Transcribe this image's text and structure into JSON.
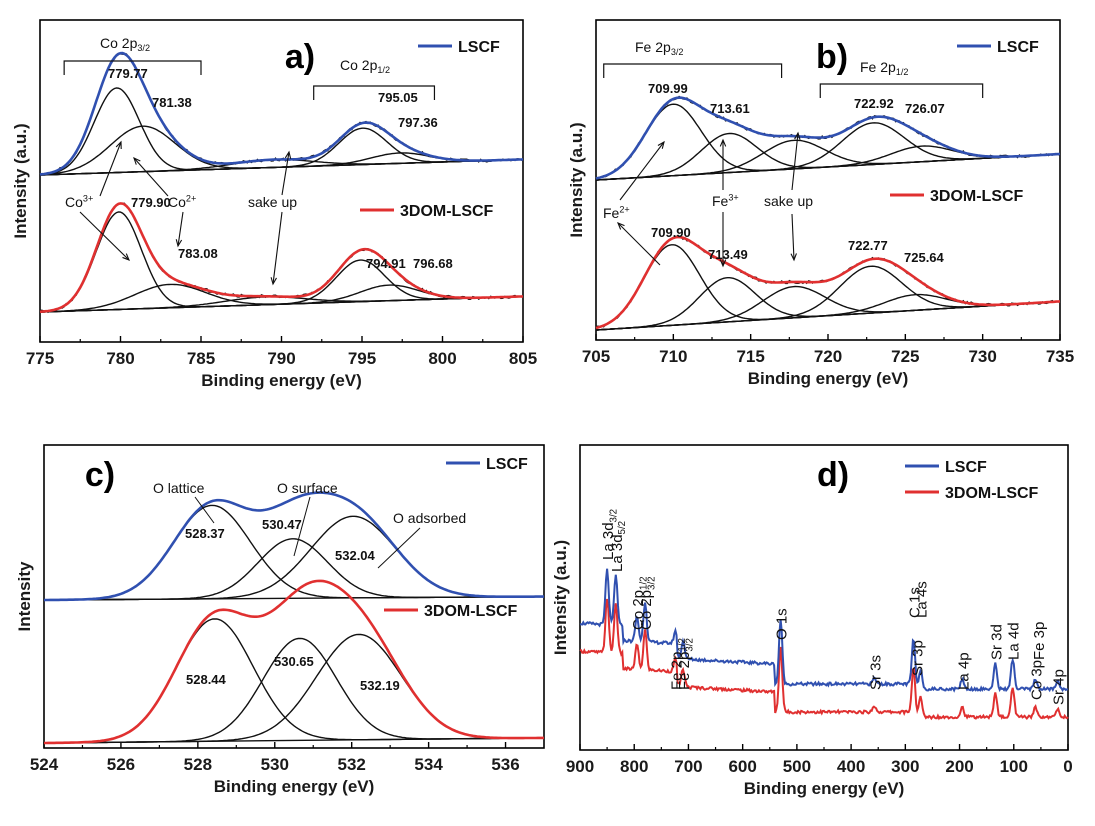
{
  "chart_data": [
    {
      "panel": "a)",
      "type": "line",
      "xlabel": "Binding energy (eV)",
      "ylabel": "Intensity (a.u.)",
      "xlim": [
        775,
        805
      ],
      "xticks": [
        775,
        780,
        785,
        790,
        795,
        800,
        805
      ],
      "series": [
        {
          "name": "LSCF",
          "color": "#3050b0",
          "peaks": [
            {
              "center": 779.77,
              "height": 0.65,
              "width": 1.4
            },
            {
              "center": 781.38,
              "height": 0.35,
              "width": 2.0
            },
            {
              "center": 789.5,
              "height": 0.06,
              "width": 2.5
            },
            {
              "center": 795.05,
              "height": 0.28,
              "width": 1.5
            },
            {
              "center": 797.36,
              "height": 0.08,
              "width": 1.8
            }
          ],
          "baseline": [
            0.0,
            0.12
          ]
        },
        {
          "name": "3DOM-LSCF",
          "color": "#e03030",
          "peaks": [
            {
              "center": 779.9,
              "height": 0.75,
              "width": 1.4
            },
            {
              "center": 783.08,
              "height": 0.18,
              "width": 2.2
            },
            {
              "center": 789.0,
              "height": 0.06,
              "width": 2.5
            },
            {
              "center": 794.91,
              "height": 0.32,
              "width": 1.5
            },
            {
              "center": 796.68,
              "height": 0.12,
              "width": 1.8
            }
          ],
          "baseline": [
            0.0,
            0.12
          ]
        }
      ],
      "annotations": [
        "Co 2p3/2",
        "Co 2p1/2",
        "779.77",
        "781.38",
        "795.05",
        "797.36",
        "779.90",
        "783.08",
        "794.91",
        "796.68",
        "Co3+",
        "Co2+",
        "sake up"
      ],
      "labels": {
        "co2p32_base": "Co 2p",
        "co2p32_sub": "3/2",
        "co2p12_base": "Co 2p",
        "co2p12_sub": "1/2",
        "p1": "779.77",
        "p2": "781.38",
        "p3": "795.05",
        "p4": "797.36",
        "p5": "779.90",
        "p6": "783.08",
        "p7": "794.91",
        "p8": "796.68",
        "co3_base": "Co",
        "co3_sup": "3+",
        "co2_base": "Co",
        "co2_sup": "2+",
        "sake": "sake up"
      }
    },
    {
      "panel": "b)",
      "type": "line",
      "xlabel": "Binding energy (eV)",
      "ylabel": "Intensity (a.u.)",
      "xlim": [
        705,
        735
      ],
      "xticks": [
        705,
        710,
        715,
        720,
        725,
        730,
        735
      ],
      "series": [
        {
          "name": "LSCF",
          "color": "#3050b0",
          "peaks": [
            {
              "center": 709.99,
              "height": 0.55,
              "width": 1.8
            },
            {
              "center": 713.61,
              "height": 0.3,
              "width": 1.8
            },
            {
              "center": 717.8,
              "height": 0.22,
              "width": 2.0
            },
            {
              "center": 722.92,
              "height": 0.32,
              "width": 2.0
            },
            {
              "center": 726.07,
              "height": 0.12,
              "width": 2.0
            }
          ],
          "baseline": [
            0.0,
            0.2
          ]
        },
        {
          "name": "3DOM-LSCF",
          "color": "#e03030",
          "peaks": [
            {
              "center": 709.9,
              "height": 0.62,
              "width": 1.8
            },
            {
              "center": 713.49,
              "height": 0.34,
              "width": 1.8
            },
            {
              "center": 717.8,
              "height": 0.24,
              "width": 2.0
            },
            {
              "center": 722.77,
              "height": 0.36,
              "width": 2.0
            },
            {
              "center": 725.64,
              "height": 0.12,
              "width": 2.0
            }
          ],
          "baseline": [
            0.0,
            0.22
          ]
        }
      ],
      "annotations": [
        "Fe 2p3/2",
        "Fe 2p1/2",
        "709.99",
        "713.61",
        "722.92",
        "726.07",
        "709.90",
        "713.49",
        "722.77",
        "725.64",
        "Fe2+",
        "Fe3+",
        "sake up"
      ],
      "labels": {
        "fe2p32_base": "Fe 2p",
        "fe2p32_sub": "3/2",
        "fe2p12_base": "Fe 2p",
        "fe2p12_sub": "1/2",
        "p1": "709.99",
        "p2": "713.61",
        "p3": "722.92",
        "p4": "726.07",
        "p5": "709.90",
        "p6": "713.49",
        "p7": "722.77",
        "p8": "725.64",
        "fe2_base": "Fe",
        "fe2_sup": "2+",
        "fe3_base": "Fe",
        "fe3_sup": "3+",
        "sake": "sake up"
      }
    },
    {
      "panel": "c)",
      "type": "line",
      "xlabel": "Binding energy (eV)",
      "ylabel": "Intensity",
      "xlim": [
        524,
        537
      ],
      "xticks": [
        524,
        526,
        528,
        530,
        532,
        534,
        536
      ],
      "series": [
        {
          "name": "LSCF",
          "color": "#3050b0",
          "peaks": [
            {
              "center": 528.37,
              "height": 0.55,
              "width": 1.0
            },
            {
              "center": 530.47,
              "height": 0.35,
              "width": 0.9
            },
            {
              "center": 532.04,
              "height": 0.48,
              "width": 1.1
            }
          ],
          "baseline": [
            0.0,
            0.02
          ]
        },
        {
          "name": "3DOM-LSCF",
          "color": "#e03030",
          "peaks": [
            {
              "center": 528.44,
              "height": 0.72,
              "width": 1.0
            },
            {
              "center": 530.65,
              "height": 0.6,
              "width": 0.95
            },
            {
              "center": 532.19,
              "height": 0.62,
              "width": 1.1
            }
          ],
          "baseline": [
            0.0,
            0.03
          ]
        }
      ],
      "annotations": [
        "O lattice",
        "O surface",
        "O adsorbed",
        "528.37",
        "530.47",
        "532.04",
        "528.44",
        "530.65",
        "532.19"
      ],
      "labels": {
        "olattice": "O lattice",
        "osurface": "O surface",
        "oadsorbed": "O adsorbed",
        "p1": "528.37",
        "p2": "530.47",
        "p3": "532.04",
        "p4": "528.44",
        "p5": "530.65",
        "p6": "532.19"
      }
    },
    {
      "panel": "d)",
      "type": "line",
      "xlabel": "Binding energy (eV)",
      "ylabel": "Intensity (a.u.)",
      "xlim": [
        900,
        0
      ],
      "xticks": [
        900,
        800,
        700,
        600,
        500,
        400,
        300,
        200,
        100,
        0
      ],
      "series": [
        {
          "name": "LSCF",
          "color": "#3050b0"
        },
        {
          "name": "3DOM-LSCF",
          "color": "#e03030"
        }
      ],
      "peak_labels": [
        {
          "energy": 850,
          "base": "La 3d",
          "sub": "3/2"
        },
        {
          "energy": 834,
          "base": "La 3d",
          "sub": "5/2"
        },
        {
          "energy": 795,
          "base": "Co 2p",
          "sub": "1/2"
        },
        {
          "energy": 780,
          "base": "Co 2p",
          "sub": "3/2"
        },
        {
          "energy": 724,
          "base": "Fe 2p",
          "sub": "1/2"
        },
        {
          "energy": 710,
          "base": "Fe 2p",
          "sub": "3/2"
        },
        {
          "energy": 530,
          "base": "O 1s",
          "sub": ""
        },
        {
          "energy": 357,
          "base": "Sr 3s",
          "sub": ""
        },
        {
          "energy": 285,
          "base": "C 1s",
          "sub": ""
        },
        {
          "energy": 279,
          "base": "Sr 3p",
          "sub": ""
        },
        {
          "energy": 272,
          "base": "La 4s",
          "sub": ""
        },
        {
          "energy": 195,
          "base": "La 4p",
          "sub": ""
        },
        {
          "energy": 134,
          "base": "Sr 3d",
          "sub": ""
        },
        {
          "energy": 102,
          "base": "La 4d",
          "sub": ""
        },
        {
          "energy": 60,
          "base": "Co 3p",
          "sub": ""
        },
        {
          "energy": 55,
          "base": "Fe 3p",
          "sub": ""
        },
        {
          "energy": 19,
          "base": "Sr 4p",
          "sub": ""
        }
      ]
    }
  ]
}
